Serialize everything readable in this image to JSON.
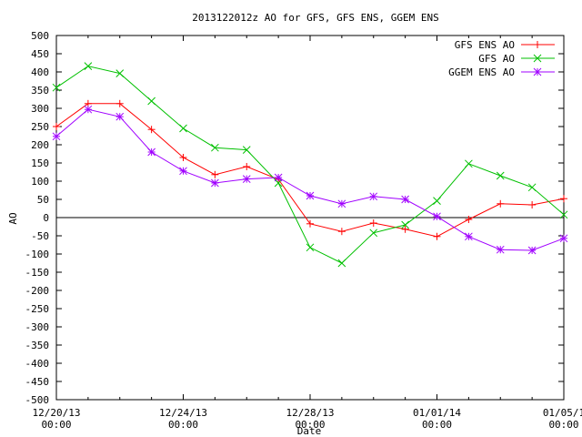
{
  "chart_data": {
    "type": "line",
    "title": "2013122012z AO for GFS, GFS ENS, GGEM ENS",
    "xlabel": "Date",
    "ylabel": "AO",
    "ylim": [
      -500,
      500
    ],
    "y_ticks": [
      500,
      450,
      400,
      350,
      300,
      250,
      200,
      150,
      100,
      50,
      0,
      -50,
      -100,
      -150,
      -200,
      -250,
      -300,
      -350,
      -400,
      -450,
      -500
    ],
    "xlim": [
      "2013-12-20 00:00",
      "2014-01-05 00:00"
    ],
    "x_ticks": [
      {
        "date": "2013-12-20 00:00",
        "line1": "12/20/13",
        "line2": "00:00"
      },
      {
        "date": "2013-12-24 00:00",
        "line1": "12/24/13",
        "line2": "00:00"
      },
      {
        "date": "2013-12-28 00:00",
        "line1": "12/28/13",
        "line2": "00:00"
      },
      {
        "date": "2014-01-01 00:00",
        "line1": "01/01/14",
        "line2": "00:00"
      },
      {
        "date": "2014-01-05 00:00",
        "line1": "01/05/1",
        "line2": "00:00"
      }
    ],
    "x": [
      "2013-12-20 00:00",
      "2013-12-21 00:00",
      "2013-12-22 00:00",
      "2013-12-23 00:00",
      "2013-12-24 00:00",
      "2013-12-25 00:00",
      "2013-12-26 00:00",
      "2013-12-27 00:00",
      "2013-12-28 00:00",
      "2013-12-29 00:00",
      "2013-12-30 00:00",
      "2013-12-31 00:00",
      "2014-01-01 00:00",
      "2014-01-02 00:00",
      "2014-01-03 00:00",
      "2014-01-04 00:00",
      "2014-01-05 00:00"
    ],
    "series": [
      {
        "name": "GFS ENS AO",
        "color": "#ff0000",
        "marker": "plus",
        "values": [
          250,
          313,
          313,
          242,
          165,
          118,
          140,
          105,
          -17,
          -38,
          -15,
          -32,
          -52,
          -5,
          38,
          35,
          52
        ]
      },
      {
        "name": "GFS AO",
        "color": "#00c000",
        "marker": "cross",
        "values": [
          357,
          416,
          396,
          320,
          245,
          192,
          186,
          95,
          -82,
          -125,
          -42,
          -20,
          46,
          148,
          115,
          83,
          8
        ]
      },
      {
        "name": "GGEM ENS AO",
        "color": "#a000ff",
        "marker": "star",
        "values": [
          223,
          297,
          277,
          180,
          128,
          95,
          106,
          110,
          60,
          38,
          58,
          50,
          3,
          -52,
          -88,
          -90,
          -57
        ]
      }
    ],
    "zero_line": true,
    "grid": false,
    "legend_position": "top-right"
  }
}
